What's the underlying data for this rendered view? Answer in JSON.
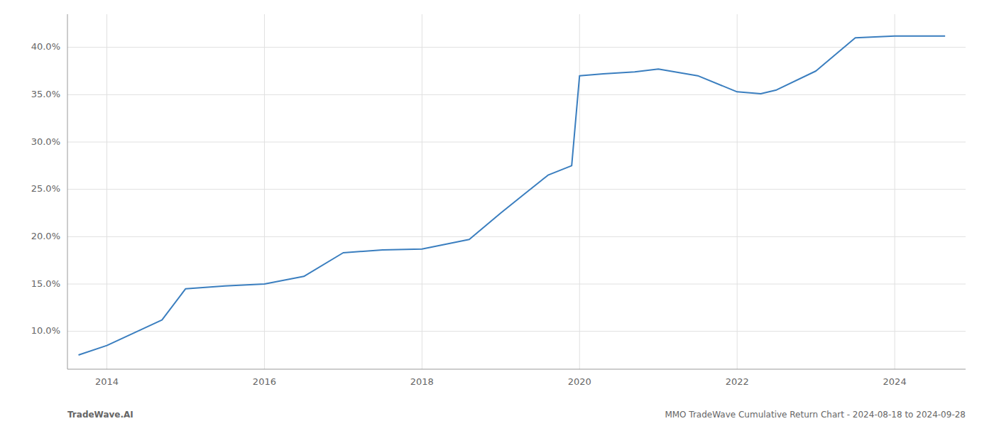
{
  "chart_data": {
    "type": "line",
    "x": [
      2013.64,
      2014.0,
      2014.7,
      2015.0,
      2015.5,
      2016.0,
      2016.5,
      2017.0,
      2017.5,
      2018.0,
      2018.3,
      2018.6,
      2019.0,
      2019.3,
      2019.6,
      2019.9,
      2020.0,
      2020.3,
      2020.7,
      2021.0,
      2021.5,
      2022.0,
      2022.3,
      2022.5,
      2023.0,
      2023.5,
      2024.0,
      2024.64
    ],
    "values": [
      0.075,
      0.085,
      0.112,
      0.145,
      0.148,
      0.15,
      0.158,
      0.183,
      0.186,
      0.187,
      0.192,
      0.197,
      0.225,
      0.245,
      0.265,
      0.275,
      0.37,
      0.372,
      0.374,
      0.377,
      0.37,
      0.353,
      0.351,
      0.355,
      0.375,
      0.41,
      0.412,
      0.412
    ],
    "color": "#3a7ebf",
    "xlim": [
      2013.5,
      2024.9
    ],
    "ylim": [
      0.06,
      0.435
    ],
    "xticks": [
      2014,
      2016,
      2018,
      2020,
      2022,
      2024
    ],
    "yticks": [
      {
        "value": 0.1,
        "label": "10.0%"
      },
      {
        "value": 0.15,
        "label": "15.0%"
      },
      {
        "value": 0.2,
        "label": "20.0%"
      },
      {
        "value": 0.25,
        "label": "25.0%"
      },
      {
        "value": 0.3,
        "label": "30.0%"
      },
      {
        "value": 0.35,
        "label": "35.0%"
      },
      {
        "value": 0.4,
        "label": "40.0%"
      }
    ],
    "grid": true,
    "annotations": [
      "TradeWave.AI",
      "MMO TradeWave Cumulative Return Chart - 2024-08-18 to 2024-09-28"
    ]
  }
}
